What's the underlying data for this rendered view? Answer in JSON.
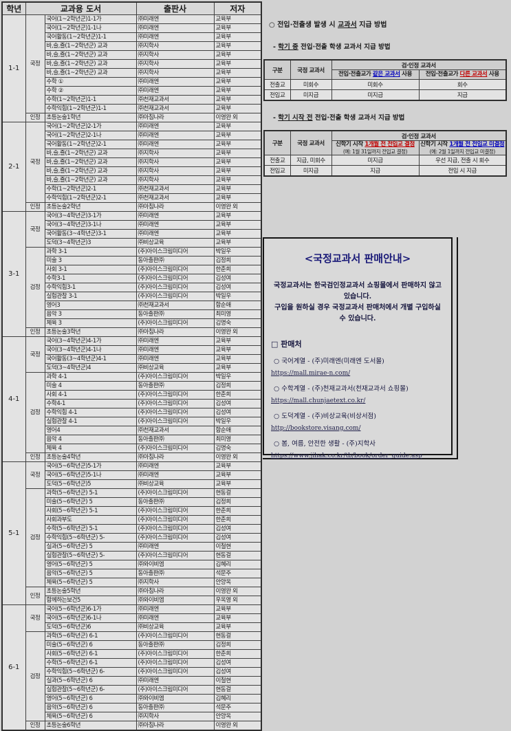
{
  "colors": {
    "red": "#c00000",
    "blue": "#0000bb",
    "navy": "#1a1a78"
  },
  "table": {
    "headers": [
      "학년",
      "교과용 도서",
      "출판사",
      "저자"
    ],
    "grades": [
      {
        "grade": "1-1",
        "groups": [
          {
            "type": "국정",
            "rows": [
              [
                "국어(1~2학년군)1-1가",
                "㈜미래엔",
                "교육부"
              ],
              [
                "국어(1~2학년군)1-1나",
                "㈜미래엔",
                "교육부"
              ],
              [
                "국어활동(1~2학년군)1-1",
                "㈜미래엔",
                "교육부"
              ],
              [
                "바,슬,즐(1~2학년군) 교과",
                "㈜지학사",
                "교육부"
              ],
              [
                "바,슬,즐(1~2학년군) 교과",
                "㈜지학사",
                "교육부"
              ],
              [
                "바,슬,즐(1~2학년군) 교과",
                "㈜지학사",
                "교육부"
              ],
              [
                "바,슬,즐(1~2학년군) 교과",
                "㈜지학사",
                "교육부"
              ],
              [
                "수학 ①",
                "㈜미래엔",
                "교육부"
              ],
              [
                "수학 ②",
                "㈜미래엔",
                "교육부"
              ],
              [
                "수학(1~2학년군)1-1",
                "㈜천재교과서",
                "교육부"
              ],
              [
                "수학익힘(1~2학년군)1-1",
                "㈜천재교과서",
                "교육부"
              ]
            ]
          },
          {
            "type": "인정",
            "rows": [
              [
                "초등논술1학년",
                "㈜아침나라",
                "이영완 외"
              ]
            ]
          }
        ]
      },
      {
        "grade": "2-1",
        "groups": [
          {
            "type": "국정",
            "rows": [
              [
                "국어(1~2학년군)2-1가",
                "㈜미래엔",
                "교육부"
              ],
              [
                "국어(1~2학년군)2-1나",
                "㈜미래엔",
                "교육부"
              ],
              [
                "국어활동(1~2학년군)2-1",
                "㈜미래엔",
                "교육부"
              ],
              [
                "바,슬,즐(1~2학년군) 교과",
                "㈜지학사",
                "교육부"
              ],
              [
                "바,슬,즐(1~2학년군) 교과",
                "㈜지학사",
                "교육부"
              ],
              [
                "바,슬,즐(1~2학년군) 교과",
                "㈜지학사",
                "교육부"
              ],
              [
                "바,슬,즐(1~2학년군) 교과",
                "㈜지학사",
                "교육부"
              ],
              [
                "수학(1~2학년군)2-1",
                "㈜천재교과서",
                "교육부"
              ],
              [
                "수학익힘(1~2학년군)2-1",
                "㈜천재교과서",
                "교육부"
              ]
            ]
          },
          {
            "type": "인정",
            "rows": [
              [
                "초등논술2학년",
                "㈜아침나라",
                "이영완 외"
              ]
            ]
          }
        ]
      },
      {
        "grade": "3-1",
        "groups": [
          {
            "type": "국정",
            "rows": [
              [
                "국어(3~4학년군)3-1가",
                "㈜미래엔",
                "교육부"
              ],
              [
                "국어(3~4학년군)3-1나",
                "㈜미래엔",
                "교육부"
              ],
              [
                "국어활동(3~4학년군)3-1",
                "㈜미래엔",
                "교육부"
              ],
              [
                "도덕(3~4학년군)3",
                "㈜비상교육",
                "교육부"
              ]
            ]
          },
          {
            "type": "검정",
            "rows": [
              [
                "과학 3-1",
                "(주)아이스크림미디어",
                "박일우"
              ],
              [
                "미술 3",
                "동아출판㈜",
                "김정희"
              ],
              [
                "사회 3-1",
                "(주)아이스크림미디어",
                "한춘희"
              ],
              [
                "수학3-1",
                "(주)아이스크림미디어",
                "김성여"
              ],
              [
                "수학익힘3-1",
                "(주)아이스크림미디어",
                "김성여"
              ],
              [
                "실험관찰 3-1",
                "(주)아이스크림미디어",
                "박일우"
              ],
              [
                "영어3",
                "㈜천재교과서",
                "함순애"
              ],
              [
                "음악 3",
                "동아출판㈜",
                "최미영"
              ],
              [
                "체육 3",
                "(주)아이스크림미디어",
                "김명숙"
              ]
            ]
          },
          {
            "type": "인정",
            "rows": [
              [
                "초등논술3학년",
                "㈜아침나라",
                "이영완 외"
              ]
            ]
          }
        ]
      },
      {
        "grade": "4-1",
        "groups": [
          {
            "type": "국정",
            "rows": [
              [
                "국어(3~4학년군)4-1가",
                "㈜미래엔",
                "교육부"
              ],
              [
                "국어(3~4학년군)4-1나",
                "㈜미래엔",
                "교육부"
              ],
              [
                "국어활동(3~4학년군)4-1",
                "㈜미래엔",
                "교육부"
              ],
              [
                "도덕(3~4학년군)4",
                "㈜비상교육",
                "교육부"
              ]
            ]
          },
          {
            "type": "검정",
            "rows": [
              [
                "과학 4-1",
                "(주)아이스크림미디어",
                "박일우"
              ],
              [
                "미술 4",
                "동아출판㈜",
                "김정희"
              ],
              [
                "사회 4-1",
                "(주)아이스크림미디어",
                "한춘희"
              ],
              [
                "수학4-1",
                "(주)아이스크림미디어",
                "김성여"
              ],
              [
                "수학익힘 4-1",
                "(주)아이스크림미디어",
                "김성여"
              ],
              [
                "실험관찰 4-1",
                "(주)아이스크림미디어",
                "박일우"
              ],
              [
                "영어4",
                "㈜천재교과서",
                "함순애"
              ],
              [
                "음악 4",
                "동아출판㈜",
                "최미영"
              ],
              [
                "체육 4",
                "(주)아이스크림미디어",
                "김명숙"
              ]
            ]
          },
          {
            "type": "인정",
            "rows": [
              [
                "초등논술4학년",
                "㈜아침나라",
                "이영완 외"
              ]
            ]
          }
        ]
      },
      {
        "grade": "5-1",
        "groups": [
          {
            "type": "국정",
            "rows": [
              [
                "국어(5~6학년군)5-1가",
                "㈜미래엔",
                "교육부"
              ],
              [
                "국어(5~6학년군)5-1나",
                "㈜미래엔",
                "교육부"
              ],
              [
                "도덕(5~6학년군)5",
                "㈜비상교육",
                "교육부"
              ]
            ]
          },
          {
            "type": "검정",
            "rows": [
              [
                "과학(5~6학년군) 5-1",
                "(주)아이스크림미디어",
                "현동걸"
              ],
              [
                "미술(5~6학년군) 5",
                "동아출판㈜",
                "김정희"
              ],
              [
                "사회(5~6학년군) 5-1",
                "(주)아이스크림미디어",
                "한춘희"
              ],
              [
                "사회과부도",
                "(주)아이스크림미디어",
                "한춘희"
              ],
              [
                "수학(5~6학년군) 5-1",
                "(주)아이스크림미디어",
                "김성여"
              ],
              [
                "수학익힘(5~6학년군) 5-",
                "(주)아이스크림미디어",
                "김성여"
              ],
              [
                "실과(5~6학년군) 5",
                "㈜미래엔",
                "이철현"
              ],
              [
                "실험관찰(5~6학년군) 5-",
                "(주)아이스크림미디어",
                "현동걸"
              ],
              [
                "영어(5~6학년군) 5",
                "㈜와이비엠",
                "김혜리"
              ],
              [
                "음악(5~6학년군) 5",
                "동아출판㈜",
                "석문주"
              ],
              [
                "체육(5~6학년군) 5",
                "㈜지학사",
                "안양옥"
              ]
            ]
          },
          {
            "type": "인정",
            "rows": [
              [
                "초등논술5학년",
                "㈜아침나라",
                "이영완 외"
              ],
              [
                "함께하는보건5",
                "㈜와이비엠",
                "우옥영 외"
              ]
            ]
          }
        ]
      },
      {
        "grade": "6-1",
        "groups": [
          {
            "type": "국정",
            "rows": [
              [
                "국어(5~6학년군)6-1가",
                "㈜미래엔",
                "교육부"
              ],
              [
                "국어(5~6학년군)6-1나",
                "㈜미래엔",
                "교육부"
              ],
              [
                "도덕(5~6학년군)6",
                "㈜비상교육",
                "교육부"
              ]
            ]
          },
          {
            "type": "검정",
            "rows": [
              [
                "과학(5~6학년군) 6-1",
                "(주)아이스크림미디어",
                "현동걸"
              ],
              [
                "미술(5~6학년군) 6",
                "동아출판㈜",
                "김정희"
              ],
              [
                "사회(5~6학년군) 6-1",
                "(주)아이스크림미디어",
                "한춘희"
              ],
              [
                "수학(5~6학년군) 6-1",
                "(주)아이스크림미디어",
                "김성여"
              ],
              [
                "수학익힘(5~6학년군) 6-",
                "(주)아이스크림미디어",
                "김성여"
              ],
              [
                "실과(5~6학년군) 6",
                "㈜미래엔",
                "이철현"
              ],
              [
                "실험관찰(5~6학년군) 6-",
                "(주)아이스크림미디어",
                "현동걸"
              ],
              [
                "영어(5~6학년군) 6",
                "㈜와이비엠",
                "김혜리"
              ],
              [
                "음악(5~6학년군) 6",
                "동아출판㈜",
                "석문주"
              ],
              [
                "체육(5~6학년군) 6",
                "㈜지학사",
                "안양옥"
              ]
            ]
          },
          {
            "type": "인정",
            "rows": [
              [
                "초등논술6학년",
                "㈜아침나라",
                "이영완 외"
              ]
            ]
          }
        ]
      }
    ]
  },
  "supply": {
    "title_parts": [
      {
        "t": "○ 전입·전출생 발생 시 "
      },
      {
        "t": "교과서",
        "u": true
      },
      {
        "t": " 지급 방법"
      }
    ],
    "sections": [
      {
        "heading_parts": [
          {
            "t": "- "
          },
          {
            "t": "학기 중",
            "u": true
          },
          {
            "t": " 전입·전출 학생 교과서 지급 방법"
          }
        ],
        "table": {
          "corner": "구분",
          "col2": "국정 교과서",
          "span": "검·인정 교과서",
          "subs": [
            {
              "parts": [
                {
                  "t": "전입·전출교가 "
                },
                {
                  "t": "같은 교과서",
                  "c": "blue",
                  "u": true
                },
                {
                  "t": " 사용"
                }
              ]
            },
            {
              "parts": [
                {
                  "t": "전입·전출교가 "
                },
                {
                  "t": "다른 교과서",
                  "c": "red",
                  "u": true
                },
                {
                  "t": " 사용"
                }
              ]
            }
          ],
          "rows": [
            [
              "전출교",
              "미회수",
              "미회수",
              "회수"
            ],
            [
              "전입교",
              "미지급",
              "미지급",
              "지급"
            ]
          ]
        }
      },
      {
        "heading_parts": [
          {
            "t": "- "
          },
          {
            "t": "학기 시작 전",
            "u": true
          },
          {
            "t": " 전입·전출 학생 교과서 지급 방법"
          }
        ],
        "table": {
          "corner": "구분",
          "col2": "국정 교과서",
          "span": "검·인정 교과서",
          "subs": [
            {
              "parts": [
                {
                  "t": "신학기 시작 "
                },
                {
                  "t": "1개월 전 전입교 결정",
                  "c": "red",
                  "u": true
                }
              ],
              "line2": "(예: 1월 31일까지 전입교 결정)"
            },
            {
              "parts": [
                {
                  "t": "신학기 시작 "
                },
                {
                  "t": "1개월 전 전입교 미결정",
                  "c": "blue",
                  "u": true
                }
              ],
              "line2": "(예: 2월 1일까지 전입교 미결정)"
            }
          ],
          "rows": [
            [
              "전출교",
              "지급, 미회수",
              "미지급",
              "우선 지급, 전출 시 회수"
            ],
            [
              "전입교",
              "미지급",
              "지급",
              "전입 시 지급"
            ]
          ]
        }
      }
    ]
  },
  "sales": {
    "title": "<국정교과서 판매안내>",
    "desc_lines": [
      "국정교과서는 한국검인정교과서 쇼핑몰에서 판매하지 않고 있습니다.",
      "구입을 원하실 경우 국정교과서 판매처에서 개별 구입하실 수 있습니다."
    ],
    "list_title": "□ 판매처",
    "items": [
      {
        "label": "○ 국어계열 - (주)미래엔(미래엔 도서몰)",
        "url": "https://mall.mirae-n.com/"
      },
      {
        "label": "○ 수학계열 - (주)천재교과서(천재교과서 쇼핑몰)",
        "url": "https://mall.chunjaetext.co.kr/"
      },
      {
        "label": "○ 도덕계열 - (주)비상교육(비상서점)",
        "url": "http://bookstore.visang.com/"
      },
      {
        "label": "○ 봄, 여름, 안전한 생활 - (주)지학사",
        "url": "https://www.jihak.co.kr/tb/book/order_guide.asp"
      }
    ]
  }
}
